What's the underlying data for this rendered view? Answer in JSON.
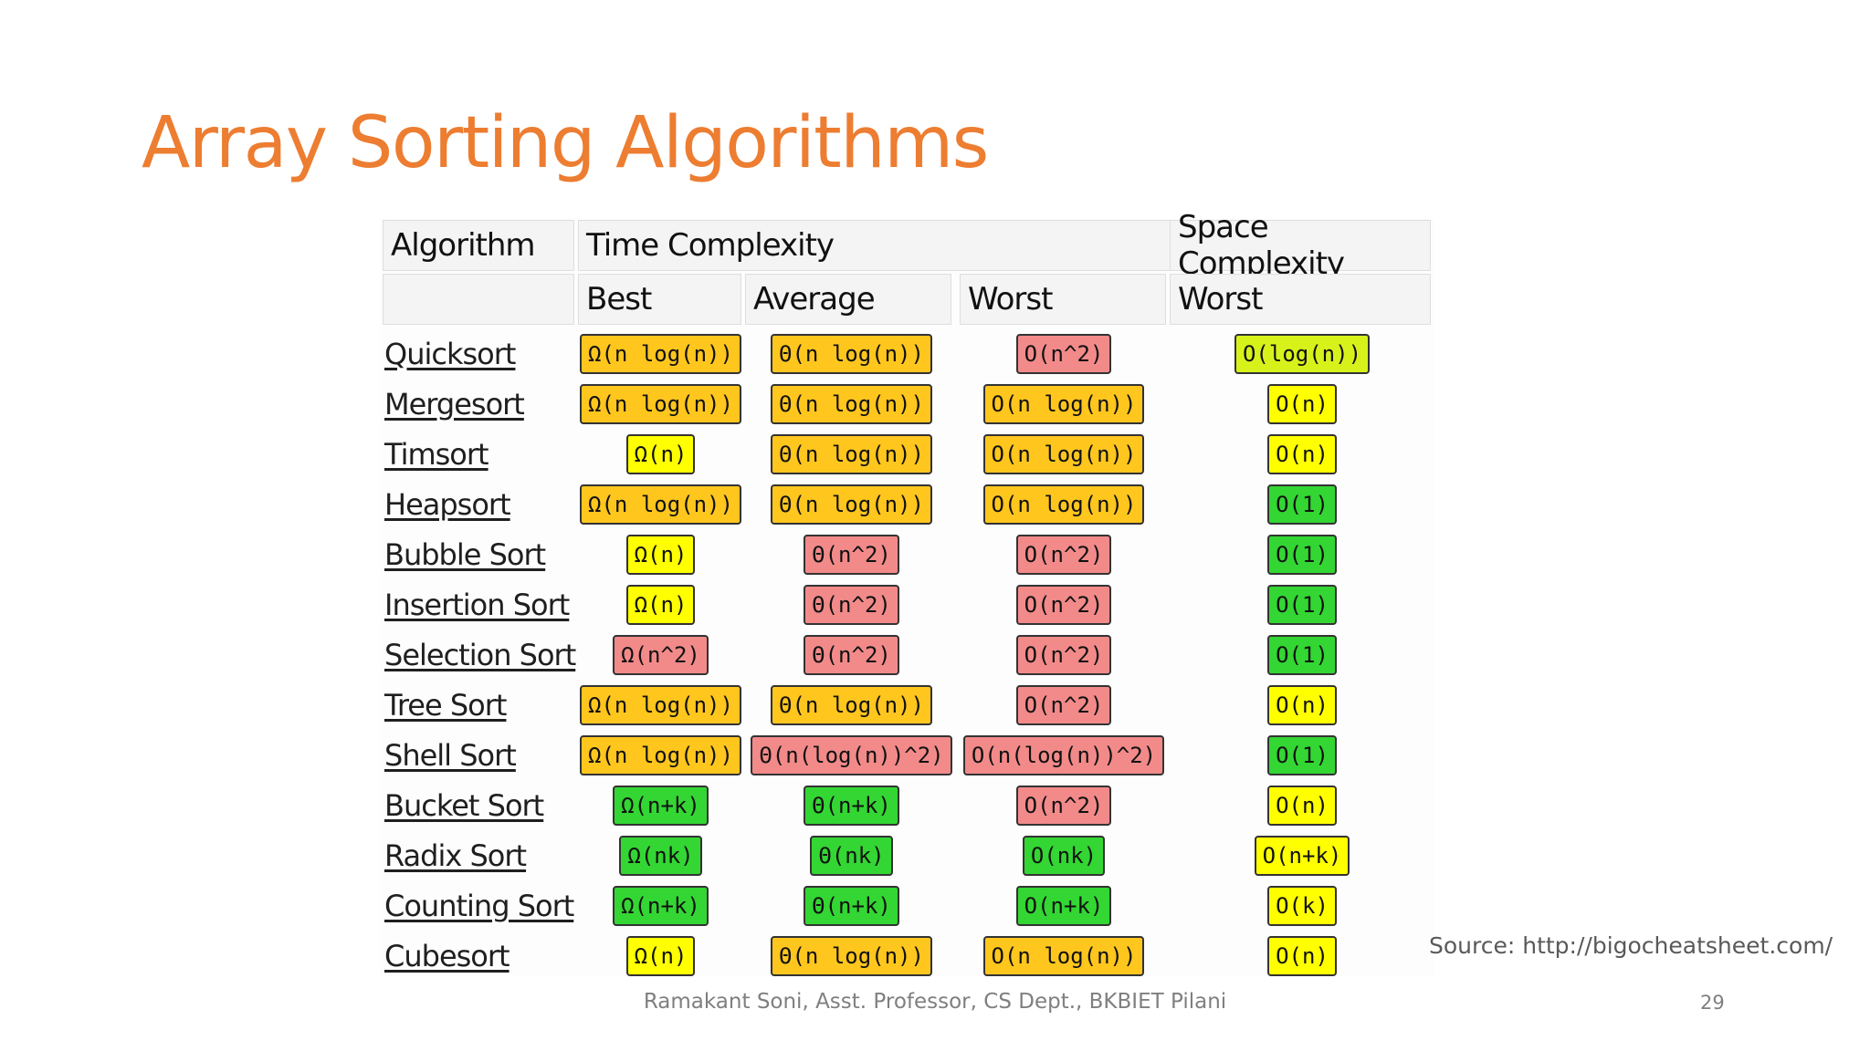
{
  "slide": {
    "title": "Array Sorting Algorithms",
    "source": "Source: http://bigocheatsheet.com/",
    "footer": "Ramakant Soni, Asst. Professor, CS Dept., BKBIET Pilani",
    "page_number": "29"
  },
  "colors": {
    "title": "#ED7D31",
    "green": "#33d633",
    "yellow": "#ffff00",
    "orange": "#ffc61e",
    "red": "#f28a8a",
    "yellow_green": "#d7f21b"
  },
  "table": {
    "headers": {
      "algorithm": "Algorithm",
      "time_complexity": "Time Complexity",
      "space_complexity": "Space Complexity",
      "best": "Best",
      "average": "Average",
      "worst": "Worst",
      "space_worst": "Worst"
    },
    "rows": [
      {
        "name": "Quicksort",
        "best": {
          "text": "Ω(n log(n))",
          "color": "orange"
        },
        "average": {
          "text": "Θ(n log(n))",
          "color": "orange"
        },
        "worst": {
          "text": "O(n^2)",
          "color": "red"
        },
        "space": {
          "text": "O(log(n))",
          "color": "yellow_green"
        }
      },
      {
        "name": "Mergesort",
        "best": {
          "text": "Ω(n log(n))",
          "color": "orange"
        },
        "average": {
          "text": "Θ(n log(n))",
          "color": "orange"
        },
        "worst": {
          "text": "O(n log(n))",
          "color": "orange"
        },
        "space": {
          "text": "O(n)",
          "color": "yellow"
        }
      },
      {
        "name": "Timsort",
        "best": {
          "text": "Ω(n)",
          "color": "yellow"
        },
        "average": {
          "text": "Θ(n log(n))",
          "color": "orange"
        },
        "worst": {
          "text": "O(n log(n))",
          "color": "orange"
        },
        "space": {
          "text": "O(n)",
          "color": "yellow"
        }
      },
      {
        "name": "Heapsort",
        "best": {
          "text": "Ω(n log(n))",
          "color": "orange"
        },
        "average": {
          "text": "Θ(n log(n))",
          "color": "orange"
        },
        "worst": {
          "text": "O(n log(n))",
          "color": "orange"
        },
        "space": {
          "text": "O(1)",
          "color": "green"
        }
      },
      {
        "name": "Bubble Sort",
        "best": {
          "text": "Ω(n)",
          "color": "yellow"
        },
        "average": {
          "text": "Θ(n^2)",
          "color": "red"
        },
        "worst": {
          "text": "O(n^2)",
          "color": "red"
        },
        "space": {
          "text": "O(1)",
          "color": "green"
        }
      },
      {
        "name": "Insertion Sort",
        "best": {
          "text": "Ω(n)",
          "color": "yellow"
        },
        "average": {
          "text": "Θ(n^2)",
          "color": "red"
        },
        "worst": {
          "text": "O(n^2)",
          "color": "red"
        },
        "space": {
          "text": "O(1)",
          "color": "green"
        }
      },
      {
        "name": "Selection Sort",
        "best": {
          "text": "Ω(n^2)",
          "color": "red"
        },
        "average": {
          "text": "Θ(n^2)",
          "color": "red"
        },
        "worst": {
          "text": "O(n^2)",
          "color": "red"
        },
        "space": {
          "text": "O(1)",
          "color": "green"
        }
      },
      {
        "name": "Tree Sort",
        "best": {
          "text": "Ω(n log(n))",
          "color": "orange"
        },
        "average": {
          "text": "Θ(n log(n))",
          "color": "orange"
        },
        "worst": {
          "text": "O(n^2)",
          "color": "red"
        },
        "space": {
          "text": "O(n)",
          "color": "yellow"
        }
      },
      {
        "name": "Shell Sort",
        "best": {
          "text": "Ω(n log(n))",
          "color": "orange"
        },
        "average": {
          "text": "Θ(n(log(n))^2)",
          "color": "red"
        },
        "worst": {
          "text": "O(n(log(n))^2)",
          "color": "red"
        },
        "space": {
          "text": "O(1)",
          "color": "green"
        }
      },
      {
        "name": "Bucket Sort",
        "best": {
          "text": "Ω(n+k)",
          "color": "green"
        },
        "average": {
          "text": "Θ(n+k)",
          "color": "green"
        },
        "worst": {
          "text": "O(n^2)",
          "color": "red"
        },
        "space": {
          "text": "O(n)",
          "color": "yellow"
        }
      },
      {
        "name": "Radix Sort",
        "best": {
          "text": "Ω(nk)",
          "color": "green"
        },
        "average": {
          "text": "Θ(nk)",
          "color": "green"
        },
        "worst": {
          "text": "O(nk)",
          "color": "green"
        },
        "space": {
          "text": "O(n+k)",
          "color": "yellow"
        }
      },
      {
        "name": "Counting Sort",
        "best": {
          "text": "Ω(n+k)",
          "color": "green"
        },
        "average": {
          "text": "Θ(n+k)",
          "color": "green"
        },
        "worst": {
          "text": "O(n+k)",
          "color": "green"
        },
        "space": {
          "text": "O(k)",
          "color": "yellow"
        }
      },
      {
        "name": "Cubesort",
        "best": {
          "text": "Ω(n)",
          "color": "yellow"
        },
        "average": {
          "text": "Θ(n log(n))",
          "color": "orange"
        },
        "worst": {
          "text": "O(n log(n))",
          "color": "orange"
        },
        "space": {
          "text": "O(n)",
          "color": "yellow"
        }
      }
    ]
  }
}
